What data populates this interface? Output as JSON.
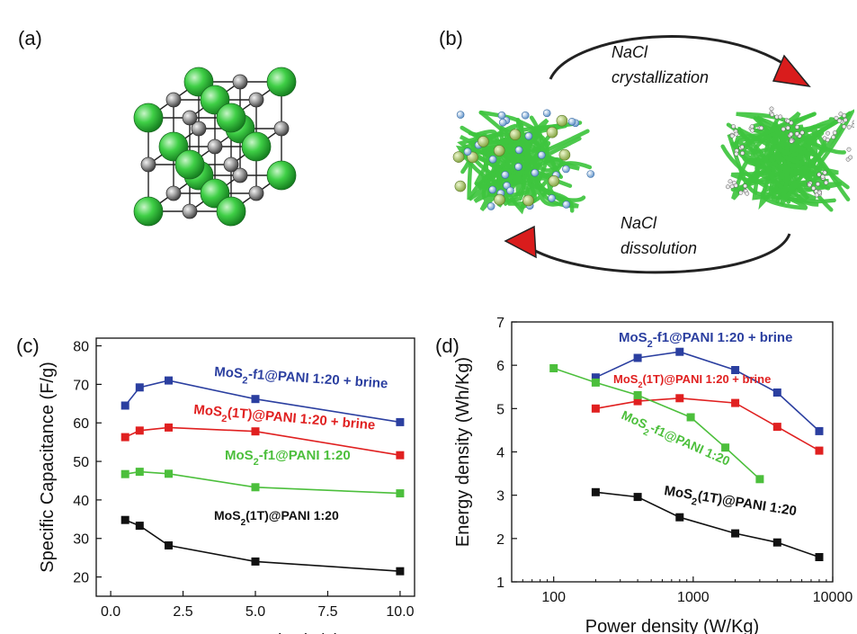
{
  "panel_labels": {
    "a": "(a)",
    "b": "(b)",
    "c": "(c)",
    "d": "(d)"
  },
  "schematic": {
    "top_arrow_label_1": "NaCl",
    "top_arrow_label_2": "crystallization",
    "bottom_arrow_label_1": "NaCl",
    "bottom_arrow_label_2": "dissolution",
    "crystal_large_atom_color": "#2fbf3c",
    "crystal_small_atom_color": "#808080",
    "polymer_color": "#3ec43e",
    "arrow_color": "#d91c1c"
  },
  "chart_data": [
    {
      "type": "line",
      "panel": "(c)",
      "xlabel": "Current Density (A/g)",
      "ylabel": "Specific Capacitance (F/g)",
      "xlim": [
        -0.5,
        10.5
      ],
      "ylim": [
        15,
        82
      ],
      "xticks": [
        0.0,
        2.5,
        5.0,
        7.5,
        10.0
      ],
      "xtick_labels": [
        "0.0",
        "2.5",
        "5.0",
        "7.5",
        "10.0"
      ],
      "yticks": [
        20,
        30,
        40,
        50,
        60,
        70,
        80
      ],
      "ytick_labels": [
        "20",
        "30",
        "40",
        "50",
        "60",
        "70",
        "80"
      ],
      "grid": false,
      "series": [
        {
          "name": "MoS₂-f1@PANI 1:20 + brine",
          "name_parts": [
            "MoS",
            "2",
            "-f1@PANI 1:20 + brine"
          ],
          "color": "#2b3fa0",
          "x": [
            0.5,
            1,
            2,
            5,
            10
          ],
          "y": [
            64.5,
            69.2,
            71.0,
            66.2,
            60.2
          ]
        },
        {
          "name": "MoS₂(1T)@PANI 1:20 + brine",
          "name_parts": [
            "MoS",
            "2",
            "(1T)@PANI 1:20 + brine"
          ],
          "color": "#e02020",
          "x": [
            0.5,
            1,
            2,
            5,
            10
          ],
          "y": [
            56.3,
            58.0,
            58.8,
            57.8,
            51.6
          ]
        },
        {
          "name": "MoS₂-f1@PANI 1:20",
          "name_parts": [
            "MoS",
            "2",
            "-f1@PANI 1:20"
          ],
          "color": "#4cbf3c",
          "x": [
            0.5,
            1,
            2,
            5,
            10
          ],
          "y": [
            46.7,
            47.3,
            46.8,
            43.3,
            41.7
          ]
        },
        {
          "name": "MoS₂(1T)@PANI 1:20",
          "name_parts": [
            "MoS",
            "2",
            "(1T)@PANI 1:20"
          ],
          "color": "#111111",
          "x": [
            0.5,
            1,
            2,
            5,
            10
          ],
          "y": [
            34.8,
            33.3,
            28.2,
            24.0,
            21.5
          ]
        }
      ]
    },
    {
      "type": "line",
      "panel": "(d)",
      "xlabel": "Power density (W/Kg)",
      "ylabel": "Energy density (Wh/Kg)",
      "xscale": "log",
      "xlim": [
        50,
        10000
      ],
      "ylim": [
        1,
        7
      ],
      "xticks": [
        100,
        1000,
        10000
      ],
      "xtick_labels": [
        "100",
        "1000",
        "10000"
      ],
      "yticks": [
        1,
        2,
        3,
        4,
        5,
        6,
        7
      ],
      "ytick_labels": [
        "1",
        "2",
        "3",
        "4",
        "5",
        "6",
        "7"
      ],
      "grid": false,
      "series": [
        {
          "name": "MoS₂-f1@PANI 1:20 + brine",
          "name_parts": [
            "MoS",
            "2",
            "-f1@PANI 1:20 + brine"
          ],
          "color": "#2b3fa0",
          "x": [
            200,
            400,
            800,
            2000,
            4000,
            8000
          ],
          "y": [
            5.72,
            6.17,
            6.31,
            5.89,
            5.37,
            4.48
          ]
        },
        {
          "name": "MoS₂(1T)@PANI 1:20 + brine",
          "name_parts": [
            "MoS",
            "2",
            "(1T)@PANI 1:20 + brine"
          ],
          "color": "#e02020",
          "x": [
            200,
            400,
            800,
            2000,
            4000,
            8000
          ],
          "y": [
            5.0,
            5.17,
            5.24,
            5.13,
            4.58,
            4.03
          ]
        },
        {
          "name": "MoS₂-f1@PANI 1:20",
          "name_parts": [
            "MoS",
            "2",
            "-f1@PANI 1:20"
          ],
          "color": "#4cbf3c",
          "x": [
            100,
            200,
            400,
            960,
            1700,
            3000
          ],
          "y": [
            5.93,
            5.6,
            5.31,
            4.8,
            4.1,
            3.37
          ]
        },
        {
          "name": "MoS₂(1T)@PANI 1:20",
          "name_parts": [
            "MoS",
            "2",
            "(1T)@PANI 1:20"
          ],
          "color": "#111111",
          "x": [
            200,
            400,
            800,
            2000,
            4000,
            8000
          ],
          "y": [
            3.07,
            2.96,
            2.49,
            2.12,
            1.91,
            1.57
          ]
        }
      ]
    }
  ]
}
